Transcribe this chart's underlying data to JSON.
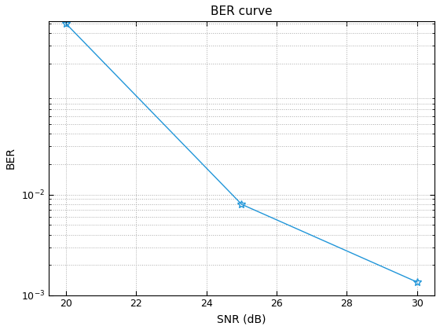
{
  "title": "BER curve",
  "xlabel": "SNR (dB)",
  "ylabel": "BER",
  "line_color": "#2196d9",
  "marker": "*",
  "markersize": 7,
  "linewidth": 1.0,
  "snr_points": [
    20,
    25,
    30
  ],
  "ber_points": [
    0.5,
    0.008,
    0.00135
  ],
  "xlim": [
    19.5,
    30.5
  ],
  "ylim_log": [
    -3,
    -0.28
  ],
  "xticks": [
    20,
    22,
    24,
    26,
    28,
    30
  ],
  "yticks_major": [
    -3,
    -2
  ],
  "grid_color": "#aaaaaa",
  "grid_linestyle": ":",
  "background_color": "#ffffff",
  "title_fontsize": 11,
  "label_fontsize": 10,
  "tick_fontsize": 9,
  "figsize": [
    5.6,
    4.2
  ],
  "dpi": 100,
  "spine_color": "#000000"
}
